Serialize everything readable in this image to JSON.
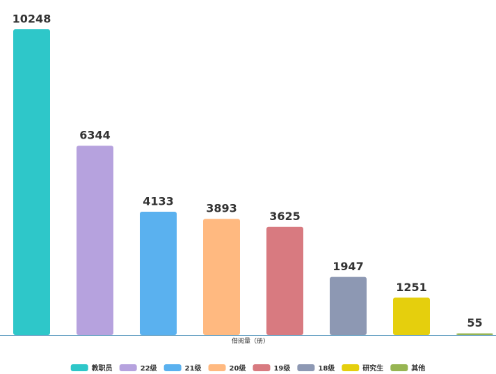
{
  "chart_data": {
    "type": "bar",
    "x_label": "借阅量（册）",
    "categories": [
      "教职员",
      "22级",
      "21级",
      "20级",
      "19级",
      "18级",
      "研究生",
      "其他"
    ],
    "values": [
      10248,
      6344,
      4133,
      3893,
      3625,
      1947,
      1251,
      55
    ],
    "colors": [
      "#2ec7c9",
      "#b6a2de",
      "#5ab1ef",
      "#ffb980",
      "#d87a80",
      "#8d98b3",
      "#e5cf0d",
      "#97b552"
    ]
  }
}
